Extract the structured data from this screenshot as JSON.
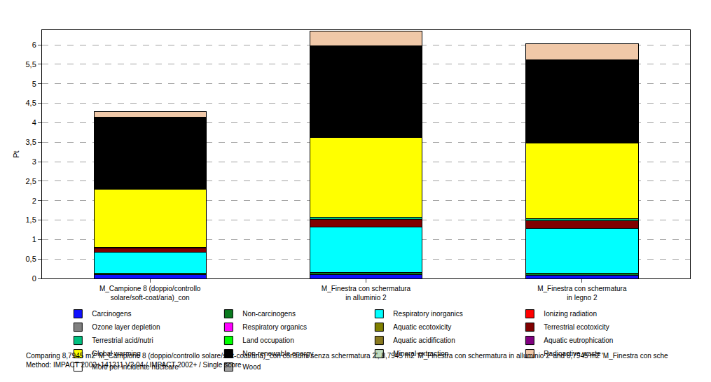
{
  "chart_data": {
    "type": "bar",
    "stacked": true,
    "grid": true,
    "legend": "bottom",
    "y_label": "Pt",
    "categories": [
      "M_Campione 8 (doppio/controllo\nsolare/soft-coat/aria)_con",
      "M_Finestra con schermatura\nin alluminio 2",
      "M_Finestra con schermatura\nin legno 2"
    ],
    "ylim": [
      0,
      6.38
    ],
    "yticks": [
      0,
      {
        "value": 0.5,
        "label": "0,5"
      },
      1,
      {
        "value": 1.5,
        "label": "1,5"
      },
      2,
      {
        "value": 2.5,
        "label": "2,5"
      },
      3,
      {
        "value": 3.5,
        "label": "3,5"
      },
      4,
      {
        "value": 4.5,
        "label": "4,5"
      },
      5,
      {
        "value": 5.5,
        "label": "5,5"
      },
      6
    ],
    "series": [
      {
        "name": "Carcinogens",
        "color": "#1010ff",
        "values": [
          0.1,
          0.1,
          0.08
        ]
      },
      {
        "name": "Non-carcinogens",
        "color": "#0a7a1e",
        "values": [
          0.03,
          0.05,
          0.05
        ]
      },
      {
        "name": "Respiratory inorganics",
        "color": "#00ffff",
        "values": [
          0.55,
          1.17,
          1.15
        ]
      },
      {
        "name": "Ionizing radiation",
        "color": "#ff0000",
        "values": [
          0,
          0,
          0
        ]
      },
      {
        "name": "Ozone layer depletion",
        "color": "#808080",
        "values": [
          0,
          0,
          0
        ]
      },
      {
        "name": "Respiratory organics",
        "color": "#ff00ff",
        "values": [
          0,
          0,
          0
        ]
      },
      {
        "name": "Aquatic ecotoxicity",
        "color": "#808000",
        "values": [
          0,
          0,
          0
        ]
      },
      {
        "name": "Terrestrial ecotoxicity",
        "color": "#800000",
        "values": [
          0.1,
          0.2,
          0.2
        ]
      },
      {
        "name": "Terrestrial acid/nutri",
        "color": "#00c080",
        "values": [
          0.02,
          0.05,
          0.05
        ]
      },
      {
        "name": "Land occupation",
        "color": "#00ff00",
        "values": [
          0,
          0,
          0
        ]
      },
      {
        "name": "Aquatic acidification",
        "color": "#8a7a20",
        "values": [
          0,
          0,
          0
        ]
      },
      {
        "name": "Aquatic eutrophication",
        "color": "#800080",
        "values": [
          0,
          0,
          0
        ]
      },
      {
        "name": "Global warming",
        "color": "#ffff00",
        "values": [
          1.5,
          2.06,
          1.94
        ]
      },
      {
        "name": "Non-renewable energy",
        "color": "#000000",
        "values": [
          1.85,
          2.35,
          2.15
        ]
      },
      {
        "name": "Mineral extraction",
        "color": "#c0dcc0",
        "values": [
          0,
          0,
          0
        ]
      },
      {
        "name": "Radioactive waste",
        "color": "#f0c8a8",
        "values": [
          0.13,
          0.37,
          0.41
        ]
      },
      {
        "name": "Morti per incidente nucleare",
        "color": "#ffffff",
        "values": [
          0,
          0,
          0
        ]
      },
      {
        "name": "Wood",
        "color": "#a0a0a0",
        "values": [
          0,
          0,
          0
        ]
      }
    ],
    "footer": [
      "Comparing 8,7945 m2 'M_Campione 8 (doppio/controllo solare/soft-coat/aria)_con consumi senza schermatura 2', 8,7945 m2 'M_Finestra con schermatura in alluminio 2' and 8,7945 m2 'M_Finestra con sche",
      "Method: IMPACT 2002+141211 V2.04 / IMPACT 2002+ / Single score"
    ]
  }
}
